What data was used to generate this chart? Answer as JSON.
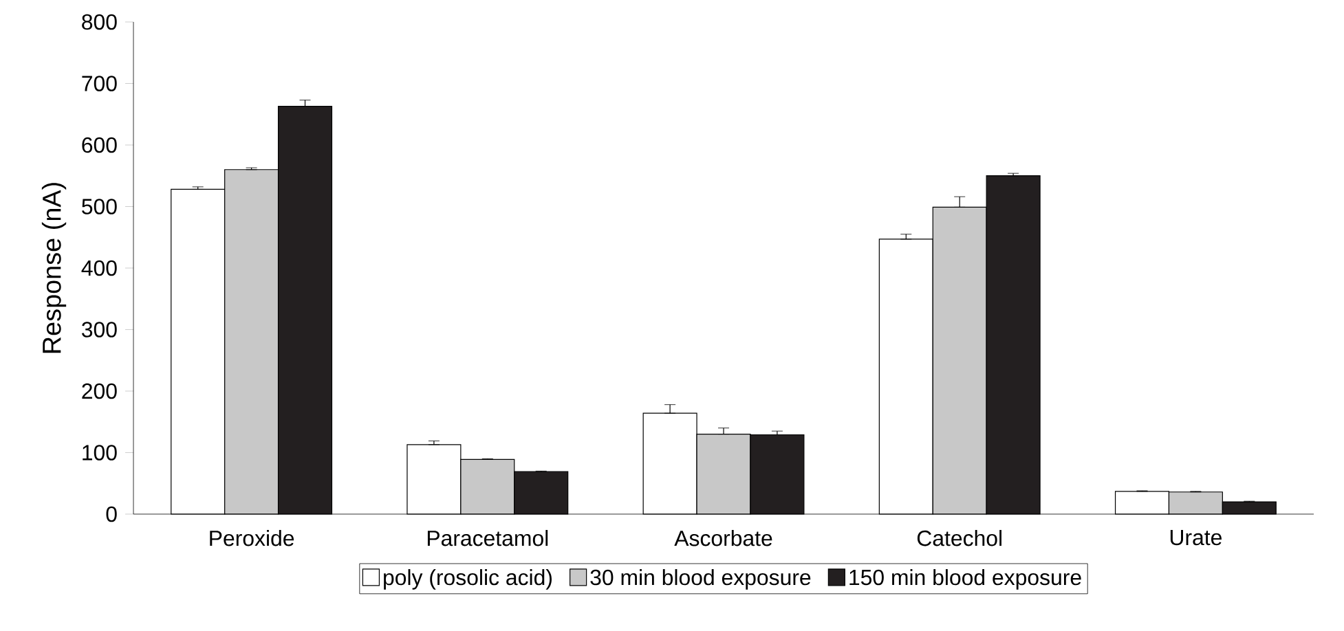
{
  "chart_data": {
    "type": "bar",
    "ylabel": "Response (nA)",
    "categories": [
      "Peroxide",
      "Paracetamol",
      "Ascorbate",
      "Catechol",
      "Urate"
    ],
    "ylim": [
      0,
      800
    ],
    "yticks": [
      0,
      100,
      200,
      300,
      400,
      500,
      600,
      700,
      800
    ],
    "grid": false,
    "legend": "bottom",
    "series": [
      {
        "name": "poly (rosolic acid)",
        "color": "#ffffff",
        "values": [
          528,
          113,
          164,
          447,
          37
        ],
        "errors": [
          [
            528,
            532
          ],
          [
            113,
            119
          ],
          [
            164,
            178
          ],
          [
            447,
            455
          ],
          [
            37,
            38
          ]
        ]
      },
      {
        "name": "30 min blood exposure",
        "color": "#c8c8c8",
        "values": [
          560,
          89,
          130,
          499,
          36
        ],
        "errors": [
          [
            560,
            563
          ],
          [
            89,
            90
          ],
          [
            130,
            140
          ],
          [
            499,
            516
          ],
          [
            36,
            37
          ]
        ]
      },
      {
        "name": "150 min blood exposure",
        "color": "#231f20",
        "values": [
          663,
          69,
          129,
          550,
          20
        ],
        "errors": [
          [
            663,
            673
          ],
          [
            69,
            70
          ],
          [
            129,
            135
          ],
          [
            550,
            554
          ],
          [
            20,
            21
          ]
        ]
      }
    ]
  }
}
